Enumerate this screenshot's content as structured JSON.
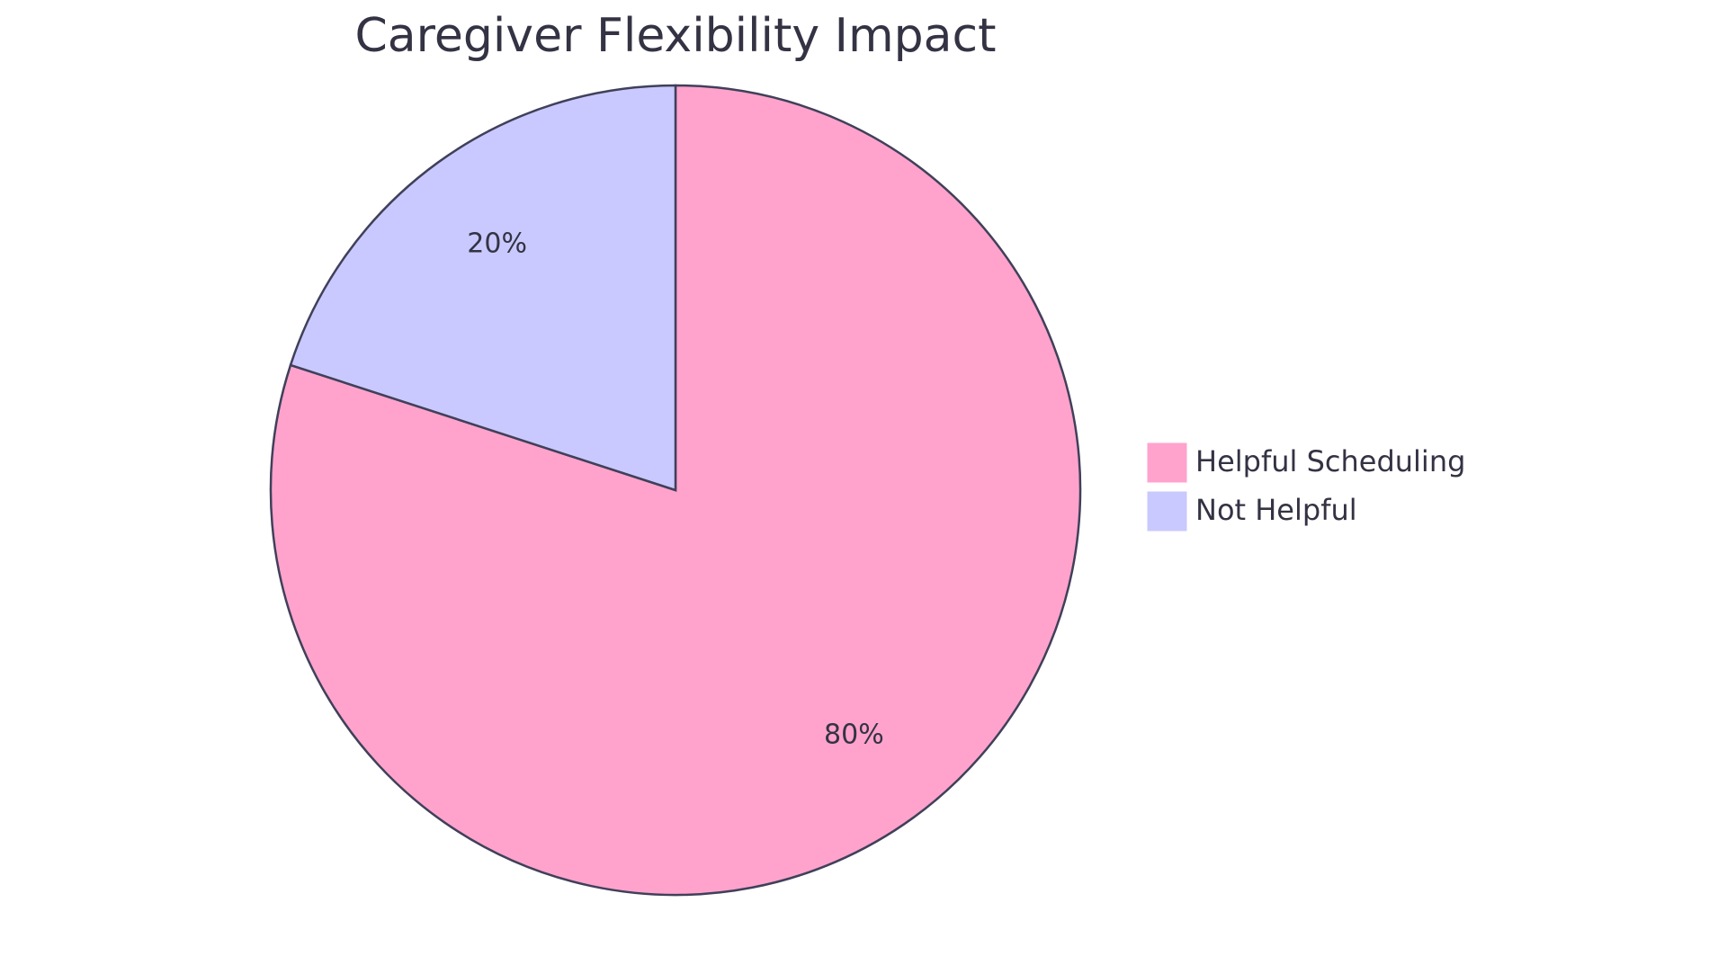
{
  "chart_data": {
    "type": "pie",
    "title": "Caregiver Flexibility Impact",
    "categories": [
      "Helpful Scheduling",
      "Not Helpful"
    ],
    "values": [
      80,
      20
    ],
    "value_labels": [
      "80%",
      "20%"
    ],
    "colors": [
      "#ffa3cc",
      "#c9c9ff"
    ]
  }
}
